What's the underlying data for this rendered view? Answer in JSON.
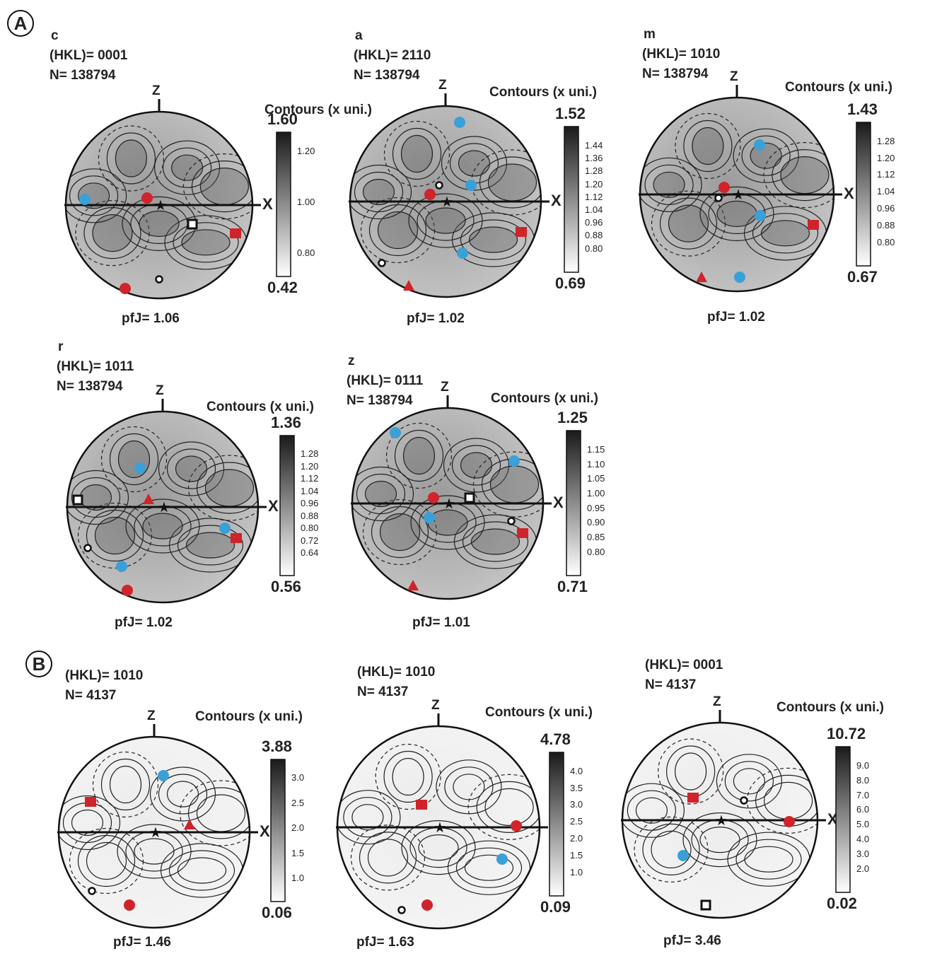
{
  "sections": {
    "a": "A",
    "b": "B"
  },
  "common": {
    "z_axis": "Z",
    "x_axis": "X",
    "contours_title": "Contours (x uni.)"
  },
  "colors": {
    "red": "#d0232a",
    "blue": "#3aa0d8",
    "black": "#111111"
  },
  "panels": [
    {
      "phase": "c",
      "hkl": "(HKL)= 0001",
      "n": "N= 138794",
      "max": "1.60",
      "min": "0.42",
      "ticks": [
        "1.20",
        "1.00",
        "0.80"
      ],
      "pfj": "pfJ= 1.06"
    },
    {
      "phase": "a",
      "hkl": "(HKL)= 2110",
      "n": "N= 138794",
      "max": "1.52",
      "min": "0.69",
      "ticks": [
        "1.44",
        "1.36",
        "1.28",
        "1.20",
        "1.12",
        "1.04",
        "0.96",
        "0.88",
        "0.80"
      ],
      "pfj": "pfJ= 1.02"
    },
    {
      "phase": "m",
      "hkl": "(HKL)= 1010",
      "n": "N= 138794",
      "max": "1.43",
      "min": "0.67",
      "ticks": [
        "1.28",
        "1.20",
        "1.12",
        "1.04",
        "0.96",
        "0.88",
        "0.80"
      ],
      "pfj": "pfJ= 1.02"
    },
    {
      "phase": "r",
      "hkl": "(HKL)= 1011",
      "n": "N= 138794",
      "max": "1.36",
      "min": "0.56",
      "ticks": [
        "1.28",
        "1.20",
        "1.12",
        "1.04",
        "0.96",
        "0.88",
        "0.80",
        "0.72",
        "0.64"
      ],
      "pfj": "pfJ= 1.02"
    },
    {
      "phase": "z",
      "hkl": "(HKL)= 0111",
      "n": "N= 138794",
      "max": "1.25",
      "min": "0.71",
      "ticks": [
        "1.15",
        "1.10",
        "1.05",
        "1.00",
        "0.95",
        "0.90",
        "0.85",
        "0.80"
      ],
      "pfj": "pfJ= 1.01"
    },
    {
      "phase": "",
      "hkl": "(HKL)= 1010",
      "n": "N= 4137",
      "max": "3.88",
      "min": "0.06",
      "ticks": [
        "3.0",
        "2.5",
        "2.0",
        "1.5",
        "1.0"
      ],
      "pfj": "pfJ= 1.46"
    },
    {
      "phase": "",
      "hkl": "(HKL)= 1010",
      "n": "N= 4137",
      "max": "4.78",
      "min": "0.09",
      "ticks": [
        "4.0",
        "3.5",
        "3.0",
        "2.5",
        "2.0",
        "1.5",
        "1.0"
      ],
      "pfj": "pfJ= 1.63"
    },
    {
      "phase": "",
      "hkl": "(HKL)= 0001",
      "n": "N= 4137",
      "max": "10.72",
      "min": "0.02",
      "ticks": [
        "9.0",
        "8.0",
        "7.0",
        "6.0",
        "5.0",
        "4.0",
        "3.0",
        "2.0"
      ],
      "pfj": "pfJ= 3.46"
    }
  ]
}
